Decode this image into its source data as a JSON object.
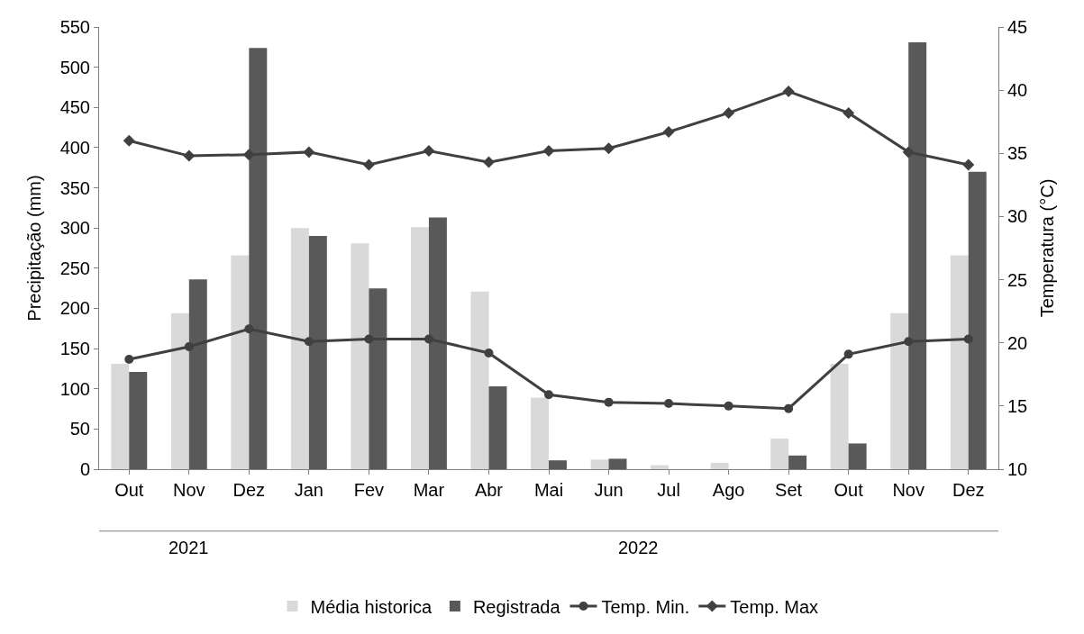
{
  "chart_data": {
    "type": "bar",
    "categories": [
      "Out",
      "Nov",
      "Dez",
      "Jan",
      "Fev",
      "Mar",
      "Abr",
      "Mai",
      "Jun",
      "Jul",
      "Ago",
      "Set",
      "Out",
      "Nov",
      "Dez"
    ],
    "ylabel": "Precipitação (mm)",
    "y2label": "Temperatura (°C)",
    "ylim": [
      0,
      550
    ],
    "yticks": [
      0,
      50,
      100,
      150,
      200,
      250,
      300,
      350,
      400,
      450,
      500,
      550
    ],
    "y2lim": [
      10,
      45
    ],
    "y2ticks": [
      10,
      15,
      20,
      25,
      30,
      35,
      40,
      45
    ],
    "legend": "bottom",
    "annotations": [
      "2021",
      "2022"
    ],
    "series": [
      {
        "name": "Média historica",
        "color": "#d9d9d9",
        "values": [
          131,
          194,
          266,
          300,
          281,
          301,
          221,
          89,
          12,
          5,
          8,
          38,
          131,
          194,
          266
        ]
      },
      {
        "name": "Registrada",
        "color": "#595959",
        "values": [
          121,
          236,
          524,
          290,
          225,
          313,
          103,
          11,
          13,
          0,
          0,
          17,
          32,
          531,
          370
        ]
      },
      {
        "name": "Temp. Min.",
        "type": "line",
        "axis": "y2",
        "marker": "circle",
        "color": "#404040",
        "values": [
          18.7,
          19.7,
          21.1,
          20.1,
          20.3,
          20.3,
          19.2,
          15.9,
          15.3,
          15.2,
          15.0,
          14.8,
          19.1,
          20.1,
          20.3
        ]
      },
      {
        "name": "Temp. Max",
        "type": "line",
        "axis": "y2",
        "marker": "diamond",
        "color": "#404040",
        "values": [
          36.0,
          34.8,
          34.9,
          35.1,
          34.1,
          35.2,
          34.3,
          35.2,
          35.4,
          36.7,
          38.2,
          39.9,
          38.2,
          35.1,
          34.1
        ]
      }
    ]
  }
}
